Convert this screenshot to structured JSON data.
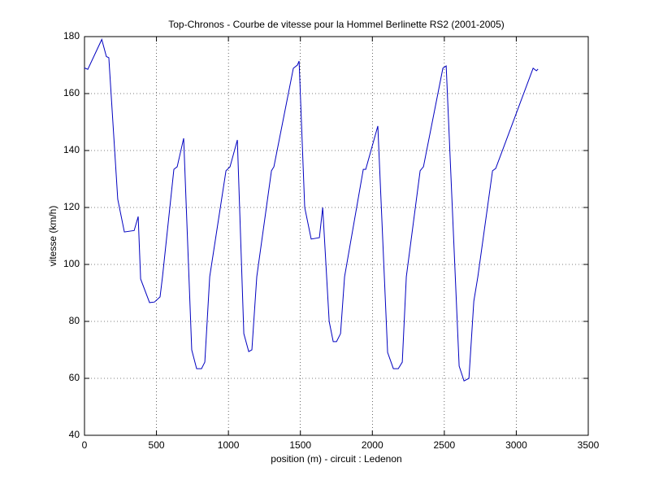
{
  "chart_data": {
    "type": "line",
    "title": "Top-Chronos - Courbe de vitesse pour la Hommel Berlinette RS2 (2001-2005)",
    "x_label": "position (m) - circuit : Ledenon",
    "y_label": "vitesse (km/h)",
    "color": "#0000c0",
    "x": [
      0,
      23,
      120,
      152,
      169,
      231,
      277,
      345,
      373,
      390,
      452,
      486,
      525,
      542,
      621,
      644,
      689,
      745,
      779,
      813,
      836,
      870,
      983,
      1011,
      1062,
      1107,
      1141,
      1163,
      1197,
      1299,
      1316,
      1451,
      1479,
      1491,
      1530,
      1575,
      1632,
      1655,
      1700,
      1728,
      1751,
      1779,
      1807,
      1937,
      1954,
      2038,
      2106,
      2146,
      2180,
      2208,
      2236,
      2332,
      2355,
      2490,
      2513,
      2603,
      2637,
      2671,
      2705,
      2733,
      2835,
      2857,
      3117,
      3140,
      3151
    ],
    "values": [
      169,
      168.5,
      179,
      173,
      172.6,
      122.9,
      111.4,
      111.9,
      116.8,
      94.9,
      86.6,
      86.8,
      88.6,
      95.7,
      133.4,
      134.3,
      144.3,
      70,
      63.4,
      63.4,
      65.7,
      95.7,
      132.9,
      134.3,
      143.7,
      75.7,
      69.4,
      70,
      95.7,
      132.9,
      134.3,
      168.9,
      170,
      171.4,
      120,
      108.9,
      109.4,
      120,
      80,
      72.9,
      72.9,
      75.7,
      95.7,
      133.4,
      133.4,
      148.6,
      69.1,
      63.4,
      63.4,
      65.7,
      95.7,
      132.9,
      134.3,
      168.9,
      169.7,
      64.3,
      59.1,
      60,
      87.1,
      95.7,
      132.9,
      133.7,
      168.9,
      168,
      168.6
    ],
    "xlim": [
      0,
      3500
    ],
    "xticks": [
      0,
      500,
      1000,
      1500,
      2000,
      2500,
      3000,
      3500
    ],
    "ylim": [
      40,
      180
    ],
    "yticks": [
      40,
      60,
      80,
      100,
      120,
      140,
      160,
      180
    ],
    "grid": true
  }
}
